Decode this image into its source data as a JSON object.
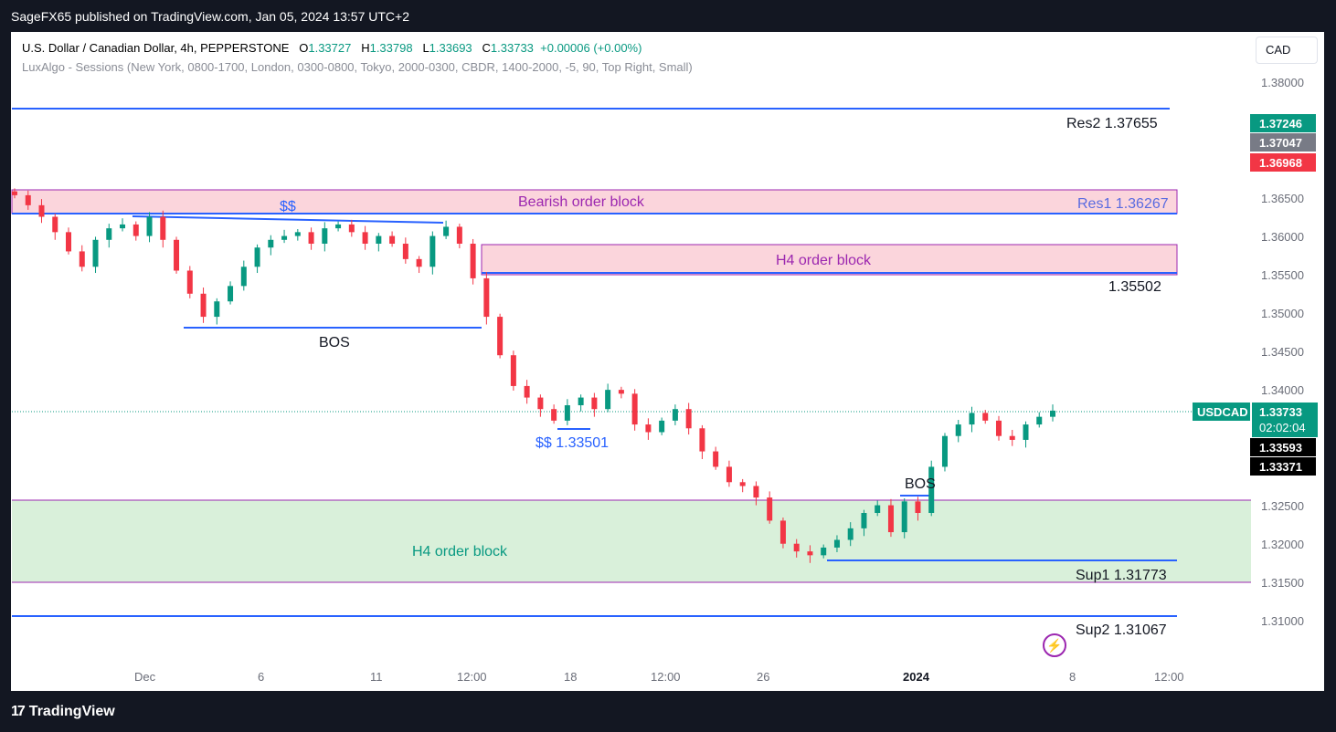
{
  "publisher_line": "SageFX65 published on TradingView.com, Jan 05, 2024 13:57 UTC+2",
  "footer_brand": "TradingView",
  "header": {
    "symbol_desc": "U.S. Dollar / Canadian Dollar, 4h, PEPPERSTONE",
    "o_label": "O",
    "o_val": "1.33727",
    "h_label": "H",
    "h_val": "1.33798",
    "l_label": "L",
    "l_val": "1.33693",
    "c_label": "C",
    "c_val": "1.33733",
    "change": "+0.00006 (+0.00%)",
    "indicator": "LuxAlgo - Sessions (New York, 0800-1700, London, 0300-0800, Tokyo, 2000-0300, CBDR, 1400-2000, -5, 90, Top Right, Small)"
  },
  "currency_button": "CAD",
  "colors": {
    "up": "#089981",
    "down": "#f23645",
    "level_line": "#2962ff",
    "bear_zone": "#fbd5dc",
    "bull_zone": "#d9f0da",
    "zone_border": "#9c27b0",
    "text_blue": "#2962ff",
    "text_purple": "#9c27b0",
    "text_green": "#089981"
  },
  "annotations": {
    "res2": "Res2  1.37655",
    "res1": "Res1 1.36267",
    "bearish_ob": "Bearish order block",
    "dollars_top": "$$",
    "h4_ob_upper": "H4 order block",
    "level_35502": "1.35502",
    "bos_left": "BOS",
    "dollars_low": "$$ 1.33501",
    "bos_right": "BOS",
    "h4_ob_lower": "H4 order block",
    "sup1": "Sup1 1.31773",
    "sup2": "Sup2 1.31067"
  },
  "price_badges": {
    "b1": "1.37246",
    "b2": "1.37047",
    "b3": "1.36968",
    "symbol": "USDCAD",
    "last": "1.33733",
    "countdown": "02:02:04",
    "b4": "1.33593",
    "b5": "1.33371"
  },
  "chart_data": {
    "type": "candlestick",
    "symbol": "USDCAD",
    "timeframe": "4h",
    "yaxis_ticks": [
      "1.38000",
      "1.36500",
      "1.36000",
      "1.35500",
      "1.35000",
      "1.34500",
      "1.34000",
      "1.32500",
      "1.32000",
      "1.31500",
      "1.31000"
    ],
    "xaxis_ticks": [
      "Dec",
      "6",
      "11",
      "12:00",
      "18",
      "12:00",
      "26",
      "2024",
      "8",
      "12:00"
    ],
    "levels": [
      {
        "label": "Res2",
        "value": 1.37655
      },
      {
        "label": "Res1",
        "value": 1.36267
      },
      {
        "label": "",
        "value": 1.35502
      },
      {
        "label": "$$",
        "value": 1.33501
      },
      {
        "label": "Sup1",
        "value": 1.31773
      },
      {
        "label": "Sup2",
        "value": 1.31067
      }
    ],
    "zones": [
      {
        "label": "Bearish order block",
        "from": 1.36267,
        "to": 1.3656
      },
      {
        "label": "H4 order block",
        "from": 1.3549,
        "to": 1.3589
      },
      {
        "label": "H4 order block",
        "from": 1.3152,
        "to": 1.3258
      }
    ],
    "close_path": [
      1.3653,
      1.364,
      1.3625,
      1.3605,
      1.358,
      1.356,
      1.3595,
      1.361,
      1.3615,
      1.36,
      1.3625,
      1.3595,
      1.3555,
      1.3525,
      1.3495,
      1.3515,
      1.3535,
      1.356,
      1.3585,
      1.3595,
      1.36,
      1.3605,
      1.359,
      1.361,
      1.3615,
      1.3605,
      1.359,
      1.36,
      1.359,
      1.357,
      1.356,
      1.36,
      1.3612,
      1.359,
      1.3545,
      1.3495,
      1.3445,
      1.3405,
      1.339,
      1.3375,
      1.336,
      1.338,
      1.339,
      1.3375,
      1.34,
      1.3395,
      1.3355,
      1.3345,
      1.336,
      1.3375,
      1.335,
      1.332,
      1.33,
      1.328,
      1.3275,
      1.326,
      1.323,
      1.32,
      1.319,
      1.3185,
      1.3195,
      1.3205,
      1.322,
      1.324,
      1.325,
      1.3215,
      1.3255,
      1.324,
      1.33,
      1.334,
      1.3355,
      1.337,
      1.336,
      1.334,
      1.3335,
      1.3355,
      1.3365,
      1.3373
    ]
  }
}
